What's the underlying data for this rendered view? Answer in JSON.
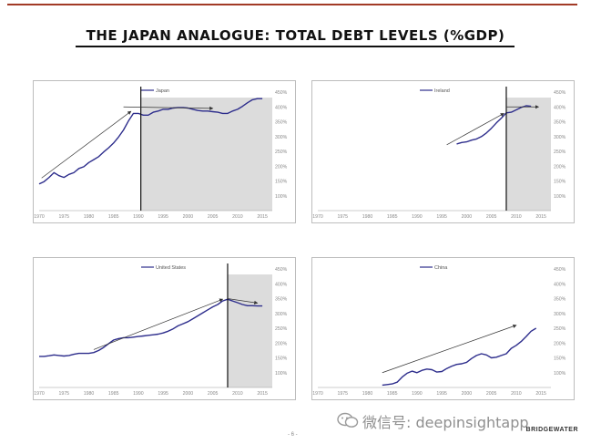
{
  "title": "THE JAPAN ANALOGUE: TOTAL DEBT LEVELS (%GDP)",
  "brand": "BRIDGEWATER",
  "watermark": "微信号: deepinsightapp",
  "page_number": "- 6 -",
  "icons": {
    "watermark": "wechat-icon"
  },
  "colors": {
    "series": "#2d2d8c",
    "shade": "#dcdcdc",
    "arrow": "#333333",
    "accent_rule": "#a23a26"
  },
  "chart_data": [
    {
      "type": "line",
      "legend": "Japan",
      "x_ticks": [
        "1970",
        "1975",
        "1980",
        "1985",
        "1990",
        "1995",
        "2000",
        "2005",
        "2010",
        "2015"
      ],
      "y_ticks": [
        "450%",
        "400%",
        "350%",
        "300%",
        "250%",
        "200%",
        "150%",
        "100%"
      ],
      "xlim": [
        1970,
        2017
      ],
      "ylim": [
        50,
        450
      ],
      "shaded_from": 1990.5,
      "vline": 1990.5,
      "series": [
        {
          "x": [
            1970,
            1971,
            1972,
            1973,
            1974,
            1975,
            1976,
            1977,
            1978,
            1979,
            1980,
            1981,
            1982,
            1983,
            1984,
            1985,
            1986,
            1987,
            1988,
            1989,
            1990,
            1991,
            1992,
            1993,
            1994,
            1995,
            1996,
            1997,
            1998,
            1999,
            2000,
            2001,
            2002,
            2003,
            2004,
            2005,
            2006,
            2007,
            2008,
            2009,
            2010,
            2011,
            2012,
            2013,
            2014,
            2015
          ],
          "y": [
            140,
            148,
            162,
            178,
            168,
            162,
            172,
            178,
            192,
            198,
            212,
            222,
            232,
            248,
            262,
            278,
            298,
            322,
            352,
            378,
            378,
            372,
            372,
            382,
            386,
            392,
            392,
            396,
            398,
            398,
            396,
            392,
            388,
            386,
            386,
            384,
            382,
            378,
            378,
            386,
            392,
            402,
            414,
            424,
            428,
            428
          ]
        }
      ],
      "arrows": [
        {
          "from": [
            1970.5,
            160
          ],
          "to": [
            1988.5,
            385
          ]
        },
        {
          "from": [
            1987,
            400
          ],
          "to": [
            2005,
            395
          ]
        }
      ]
    },
    {
      "type": "line",
      "legend": "Ireland",
      "x_ticks": [
        "1970",
        "1975",
        "1980",
        "1985",
        "1990",
        "1995",
        "2000",
        "2005",
        "2010",
        "2015"
      ],
      "y_ticks": [
        "450%",
        "400%",
        "350%",
        "300%",
        "250%",
        "200%",
        "150%",
        "100%"
      ],
      "xlim": [
        1970,
        2017
      ],
      "ylim": [
        50,
        450
      ],
      "shaded_from": 2008,
      "vline": 2008,
      "series": [
        {
          "x": [
            1998,
            1999,
            2000,
            2001,
            2002,
            2003,
            2004,
            2005,
            2006,
            2007,
            2008,
            2009,
            2010,
            2011,
            2012,
            2013
          ],
          "y": [
            275,
            280,
            282,
            288,
            292,
            300,
            312,
            328,
            346,
            362,
            380,
            382,
            390,
            398,
            404,
            402
          ]
        }
      ],
      "arrows": [
        {
          "from": [
            1996,
            272
          ],
          "to": [
            2007.5,
            378
          ]
        },
        {
          "from": [
            2008,
            400
          ],
          "to": [
            2014.5,
            400
          ]
        }
      ]
    },
    {
      "type": "line",
      "legend": "United States",
      "x_ticks": [
        "1970",
        "1975",
        "1980",
        "1985",
        "1990",
        "1995",
        "2000",
        "2005",
        "2010",
        "2015"
      ],
      "y_ticks": [
        "450%",
        "400%",
        "350%",
        "300%",
        "250%",
        "200%",
        "150%",
        "100%"
      ],
      "xlim": [
        1970,
        2017
      ],
      "ylim": [
        50,
        450
      ],
      "shaded_from": 2008,
      "vline": 2008,
      "series": [
        {
          "x": [
            1970,
            1971,
            1972,
            1973,
            1974,
            1975,
            1976,
            1977,
            1978,
            1979,
            1980,
            1981,
            1982,
            1983,
            1984,
            1985,
            1986,
            1987,
            1988,
            1989,
            1990,
            1991,
            1992,
            1993,
            1994,
            1995,
            1996,
            1997,
            1998,
            1999,
            2000,
            2001,
            2002,
            2003,
            2004,
            2005,
            2006,
            2007,
            2008,
            2009,
            2010,
            2011,
            2012,
            2013,
            2014,
            2015
          ],
          "y": [
            155,
            155,
            157,
            160,
            158,
            156,
            158,
            162,
            165,
            165,
            165,
            168,
            175,
            185,
            198,
            210,
            215,
            218,
            218,
            220,
            222,
            224,
            226,
            228,
            230,
            234,
            240,
            248,
            258,
            265,
            272,
            282,
            292,
            302,
            312,
            322,
            330,
            342,
            348,
            342,
            336,
            330,
            326,
            326,
            325,
            325
          ]
        }
      ],
      "arrows": [
        {
          "from": [
            1981,
            178
          ],
          "to": [
            2007,
            348
          ]
        },
        {
          "from": [
            2008,
            350
          ],
          "to": [
            2014,
            335
          ]
        }
      ]
    },
    {
      "type": "line",
      "legend": "China",
      "x_ticks": [
        "1970",
        "1975",
        "1980",
        "1985",
        "1990",
        "1995",
        "2000",
        "2005",
        "2010",
        "2015"
      ],
      "y_ticks": [
        "450%",
        "400%",
        "350%",
        "300%",
        "250%",
        "200%",
        "150%",
        "100%"
      ],
      "xlim": [
        1970,
        2017
      ],
      "ylim": [
        50,
        450
      ],
      "series": [
        {
          "x": [
            1983,
            1984,
            1985,
            1986,
            1987,
            1988,
            1989,
            1990,
            1991,
            1992,
            1993,
            1994,
            1995,
            1996,
            1997,
            1998,
            1999,
            2000,
            2001,
            2002,
            2003,
            2004,
            2005,
            2006,
            2007,
            2008,
            2009,
            2010,
            2011,
            2012,
            2013,
            2014
          ],
          "y": [
            58,
            60,
            62,
            68,
            85,
            98,
            105,
            100,
            108,
            112,
            110,
            102,
            104,
            114,
            122,
            128,
            130,
            135,
            148,
            158,
            164,
            160,
            150,
            152,
            158,
            164,
            182,
            192,
            205,
            222,
            240,
            250
          ]
        }
      ],
      "arrows": [
        {
          "from": [
            1983,
            100
          ],
          "to": [
            2010,
            260
          ]
        }
      ]
    }
  ]
}
